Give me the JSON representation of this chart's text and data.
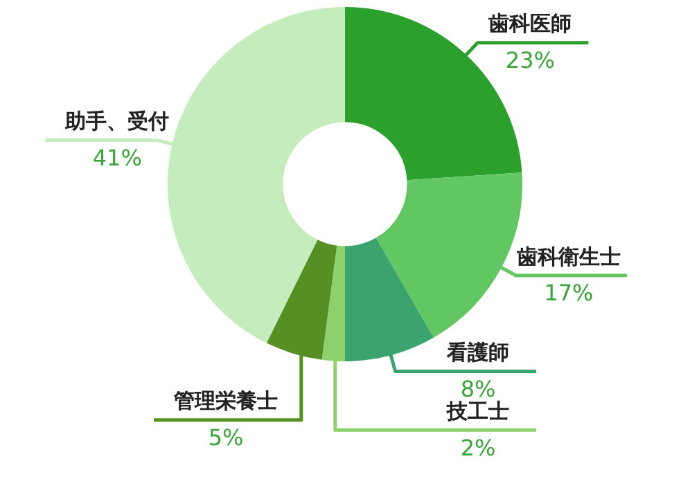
{
  "chart_data": {
    "type": "donut",
    "categories": [
      "歯科医師",
      "歯科衛生士",
      "看護師",
      "技工士",
      "管理栄養士",
      "助手、受付"
    ],
    "values": [
      23,
      17,
      8,
      2,
      5,
      41
    ],
    "value_labels": [
      "23%",
      "17%",
      "8%",
      "2%",
      "5%",
      "41%"
    ],
    "colors": [
      "#2ca02c",
      "#62c662",
      "#3ba46e",
      "#8fd16c",
      "#568f24",
      "#c5ecbd"
    ],
    "legend": false
  }
}
